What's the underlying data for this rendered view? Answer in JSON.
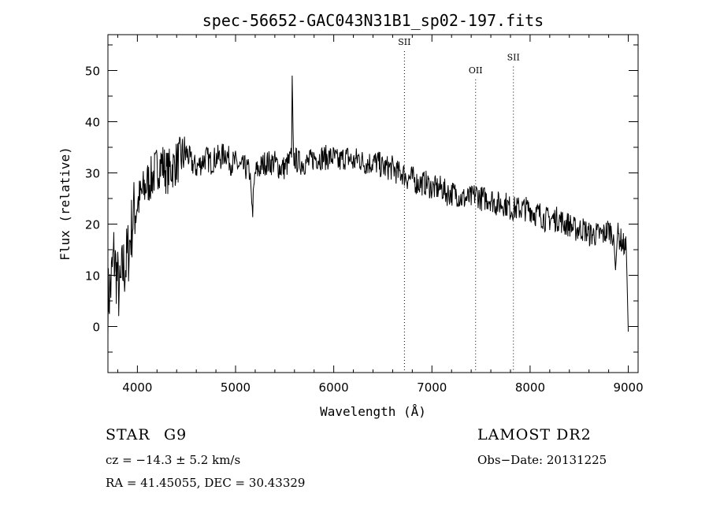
{
  "chart_data": {
    "type": "line",
    "title": "spec-56652-GAC043N31B1_sp02-197.fits",
    "xlabel": "Wavelength (Å)",
    "ylabel": "Flux (relative)",
    "xlim": [
      3700,
      9100
    ],
    "ylim": [
      -9,
      57
    ],
    "xticks": [
      4000,
      5000,
      6000,
      7000,
      8000,
      9000
    ],
    "yticks": [
      0,
      10,
      20,
      30,
      40,
      50
    ],
    "grid": false,
    "lines": [
      {
        "label": "SII",
        "x": 6720,
        "label_y": 55
      },
      {
        "label": "OII",
        "x": 7445,
        "label_y": 49.5
      },
      {
        "label": "SII",
        "x": 7830,
        "label_y": 52
      }
    ],
    "series": [
      {
        "x": [
          3700,
          3730,
          3760,
          3790,
          3820,
          3850,
          3880,
          3920,
          3960,
          4000,
          4050,
          4100,
          4150,
          4200,
          4250,
          4300,
          4350,
          4400,
          4450,
          4500,
          4550,
          4600,
          4650,
          4700,
          4750,
          4800,
          4850,
          4900,
          4950,
          5000,
          5050,
          5100,
          5150,
          5170,
          5200,
          5250,
          5300,
          5350,
          5400,
          5450,
          5500,
          5540,
          5570,
          5577,
          5590,
          5650,
          5700,
          5750,
          5800,
          5850,
          5900,
          5950,
          6000,
          6050,
          6100,
          6150,
          6200,
          6250,
          6300,
          6350,
          6400,
          6450,
          6500,
          6550,
          6600,
          6650,
          6700,
          6750,
          6800,
          6850,
          6900,
          6950,
          7000,
          7050,
          7100,
          7150,
          7200,
          7250,
          7300,
          7350,
          7400,
          7450,
          7500,
          7550,
          7600,
          7650,
          7700,
          7750,
          7800,
          7850,
          7900,
          7950,
          8000,
          8050,
          8100,
          8150,
          8200,
          8250,
          8300,
          8350,
          8400,
          8450,
          8500,
          8550,
          8600,
          8650,
          8700,
          8750,
          8800,
          8850,
          8870,
          8890,
          8920,
          8950,
          8980,
          9000
        ],
        "y": [
          5,
          8,
          14,
          10,
          6,
          11,
          12,
          16,
          22,
          24,
          26,
          28,
          29,
          31,
          32,
          30,
          31,
          32,
          33,
          34,
          32,
          31,
          32,
          33,
          32,
          33,
          33,
          34,
          32,
          32,
          31,
          31,
          30,
          22,
          30,
          31,
          32,
          32,
          32,
          31,
          31,
          32,
          33,
          49,
          33,
          32,
          32,
          32,
          33,
          33,
          33,
          33,
          33,
          32,
          33,
          33,
          32,
          33,
          32,
          32,
          32,
          32,
          31,
          31,
          31,
          30,
          30,
          29,
          29,
          28,
          28,
          28,
          27,
          27,
          27,
          26,
          26,
          26,
          25,
          25,
          25,
          26,
          25,
          25,
          25,
          24,
          24,
          24,
          23,
          23,
          23,
          23,
          23,
          22,
          22,
          21,
          21,
          21,
          21,
          20,
          20,
          19,
          19,
          19,
          18,
          18,
          18,
          18,
          19,
          18,
          11,
          18,
          17,
          16,
          15,
          -1
        ]
      }
    ]
  },
  "info": {
    "class_label": "STAR",
    "subclass": "G9",
    "survey": "LAMOST DR2",
    "redshift_line": "cz = −14.3 ± 5.2 km/s",
    "obs_date_line": "Obs−Date: 20131225",
    "coords_line": "RA =  41.45055, DEC =  30.43329"
  }
}
